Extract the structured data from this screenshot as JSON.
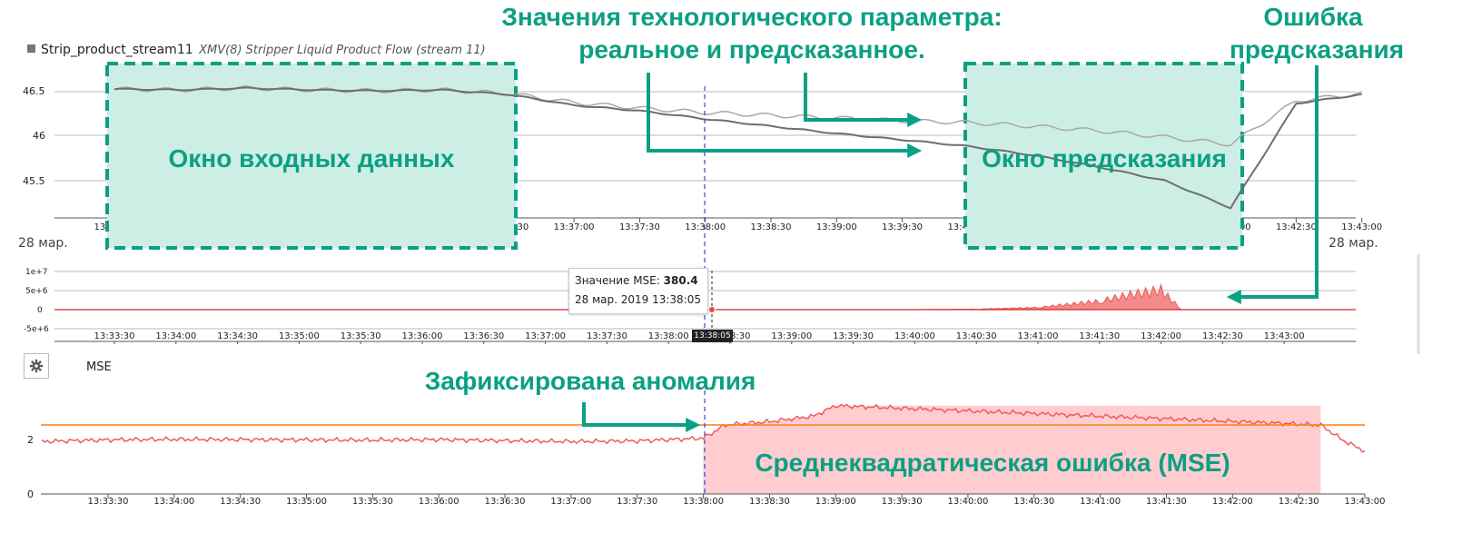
{
  "annotations": {
    "params_line1": "Значения технологического параметра:",
    "params_line2": "реальное и предсказанное.",
    "error_line1": "Ошибка",
    "error_line2": "предсказания",
    "input_window": "Окно входных данных",
    "prediction_window": "Окно предсказания",
    "anomaly": "Зафиксирована аномалия",
    "mse_area": "Среднеквадратическая ошибка (MSE)",
    "accent_color": "#0ba083",
    "window_fill": "#cdeee4"
  },
  "chart1": {
    "series_name": "Strip_product_stream11",
    "series_desc": "XMV(8) Stripper Liquid Product Flow (stream 11)",
    "date_left": "28 мар.",
    "date_right": "28 мар."
  },
  "chart2": {
    "tooltip_label": "Значение MSE:",
    "tooltip_value": "380.4",
    "tooltip_date": "28 мар. 2019 13:38:05",
    "cursor_time": "13:38:05"
  },
  "chart3": {
    "title": "MSE",
    "settings_icon": "gear-icon"
  },
  "chart_data": [
    {
      "type": "line",
      "x": [
        "13:33:30",
        "13:34:00",
        "13:34:30",
        "13:35:00",
        "13:35:30",
        "13:36:00",
        "13:36:30",
        "13:37:00",
        "13:37:30",
        "13:38:00",
        "13:38:30",
        "13:39:00",
        "13:39:30",
        "13:40:00",
        "13:40:30",
        "13:41:00",
        "13:41:30",
        "13:42:00",
        "13:42:30",
        "13:43:00"
      ],
      "x_ticks": [
        "13:33:30",
        "13:34:00",
        "13:34:30",
        "13:35:00",
        "13:35:30",
        "13:36:00",
        "13:36:30",
        "13:37:00",
        "13:37:30",
        "13:38:00",
        "13:38:30",
        "13:39:00",
        "13:39:30",
        "13:40:00",
        "13:40:30",
        "13:41:00",
        "13:41:30",
        "13:42:00",
        "13:42:30",
        "13:43:00"
      ],
      "y_ticks": [
        "46.5",
        "46",
        "45.5"
      ],
      "series": [
        {
          "name": "Strip_product_stream11",
          "values": [
            46.51,
            46.5,
            46.52,
            46.5,
            46.49,
            46.5,
            46.45,
            46.33,
            46.27,
            46.18,
            46.1,
            46.02,
            45.95,
            45.88,
            45.78,
            45.65,
            45.5,
            45.2,
            46.35,
            46.45
          ]
        },
        {
          "values": [
            46.51,
            46.5,
            46.52,
            46.5,
            46.49,
            46.5,
            46.46,
            46.36,
            46.3,
            46.25,
            46.22,
            46.19,
            46.16,
            46.14,
            46.1,
            46.05,
            45.98,
            45.9,
            46.38,
            46.46
          ]
        }
      ],
      "colors": [
        "#6e6e6e",
        "#a8a8a8"
      ],
      "grid": true
    },
    {
      "type": "area",
      "x_ticks": [
        "13:33:30",
        "13:34:00",
        "13:34:30",
        "13:35:00",
        "13:35:30",
        "13:36:00",
        "13:36:30",
        "13:37:00",
        "13:37:30",
        "13:38:00",
        "13:38:30",
        "13:39:00",
        "13:39:30",
        "13:40:00",
        "13:40:30",
        "13:41:00",
        "13:41:30",
        "13:42:00",
        "13:42:30",
        "13:43:00"
      ],
      "y_ticks": [
        "1e+7",
        "5e+6",
        "0",
        "-5e+6"
      ],
      "x": [
        "13:38:00",
        "13:40:00",
        "13:40:30",
        "13:41:00",
        "13:41:30",
        "13:41:45",
        "13:42:00",
        "13:42:10"
      ],
      "values": [
        0,
        10000,
        150000,
        700000,
        2800000,
        5000000,
        6500000,
        0
      ],
      "color": "#f06a6a",
      "threshold": 0,
      "threshold_color": "#d62728"
    },
    {
      "type": "line",
      "title": "MSE",
      "x_ticks": [
        "13:33:30",
        "13:34:00",
        "13:34:30",
        "13:35:00",
        "13:35:30",
        "13:36:00",
        "13:36:30",
        "13:37:00",
        "13:37:30",
        "13:38:00",
        "13:38:30",
        "13:39:00",
        "13:39:30",
        "13:40:00",
        "13:40:30",
        "13:41:00",
        "13:41:30",
        "13:42:00",
        "13:42:30",
        "13:43:00"
      ],
      "y_ticks": [
        "2",
        "0"
      ],
      "x": [
        "13:33:00",
        "13:33:30",
        "13:34:00",
        "13:34:30",
        "13:35:00",
        "13:35:30",
        "13:36:00",
        "13:36:30",
        "13:37:00",
        "13:37:30",
        "13:38:00",
        "13:38:10",
        "13:38:30",
        "13:38:50",
        "13:39:00",
        "13:42:40",
        "13:42:50",
        "13:43:00"
      ],
      "values": [
        1.9,
        1.96,
        1.98,
        1.97,
        1.96,
        1.95,
        1.97,
        1.93,
        1.9,
        1.92,
        2.02,
        2.5,
        2.62,
        2.82,
        3.2,
        2.5,
        1.95,
        1.55
      ],
      "threshold": 2.5,
      "threshold_color": "#ff7f0e",
      "color": "#f05a5a",
      "anomaly_start": "13:38:00",
      "anomaly_end": "13:42:40"
    }
  ]
}
